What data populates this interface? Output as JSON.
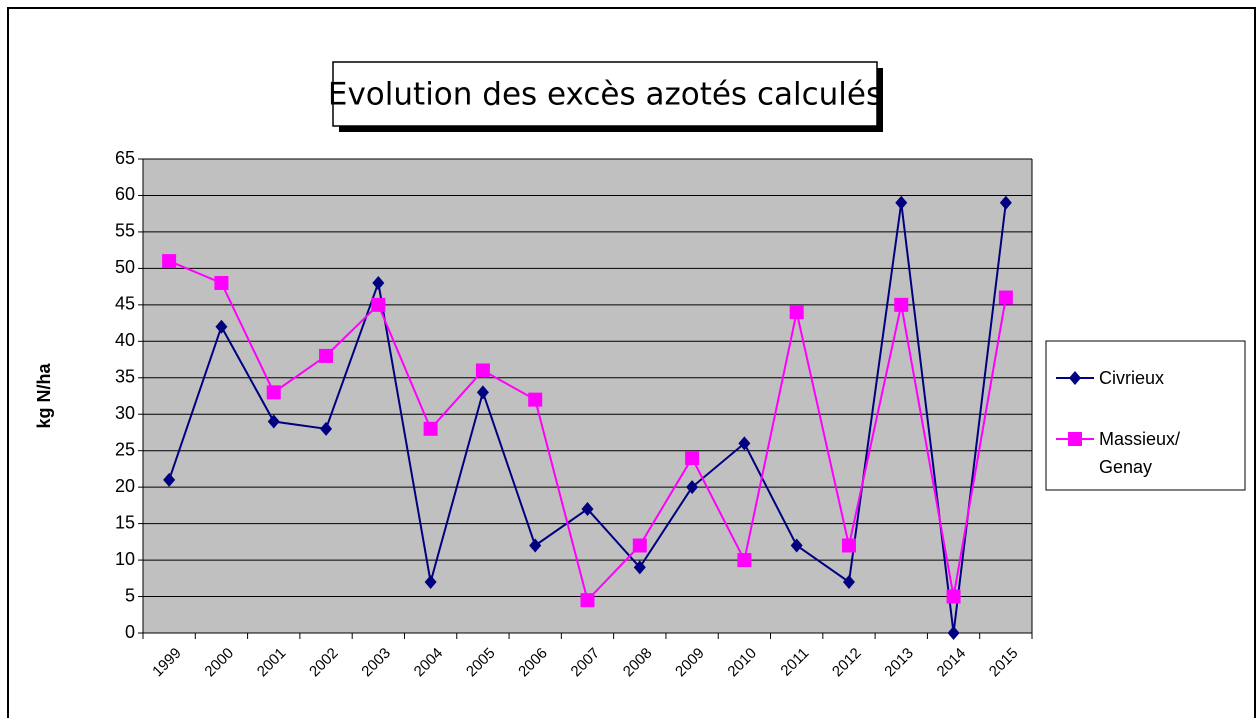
{
  "chart_data": {
    "type": "line",
    "title": "Evolution des excès azotés calculés",
    "ylabel": "kg N/ha",
    "categories": [
      "1999",
      "2000",
      "2001",
      "2002",
      "2003",
      "2004",
      "2005",
      "2006",
      "2007",
      "2008",
      "2009",
      "2010",
      "2011",
      "2012",
      "2013",
      "2014",
      "2015"
    ],
    "series": [
      {
        "name": "Civrieux",
        "color": "#000080",
        "marker": "diamond",
        "values": [
          21,
          42,
          29,
          28,
          48,
          7,
          33,
          12,
          17,
          9,
          20,
          26,
          12,
          7,
          59,
          0,
          59
        ]
      },
      {
        "name": "Massieux/ Genay",
        "color": "#ff00ff",
        "marker": "square",
        "values": [
          51,
          48,
          33,
          38,
          45,
          28,
          36,
          32,
          4.5,
          12,
          24,
          10,
          44,
          12,
          45,
          5,
          46
        ]
      }
    ],
    "ylim": [
      0,
      65
    ],
    "yticks": [
      0,
      5,
      10,
      15,
      20,
      25,
      30,
      35,
      40,
      45,
      50,
      55,
      60,
      65
    ],
    "grid": true,
    "legend": "right"
  }
}
